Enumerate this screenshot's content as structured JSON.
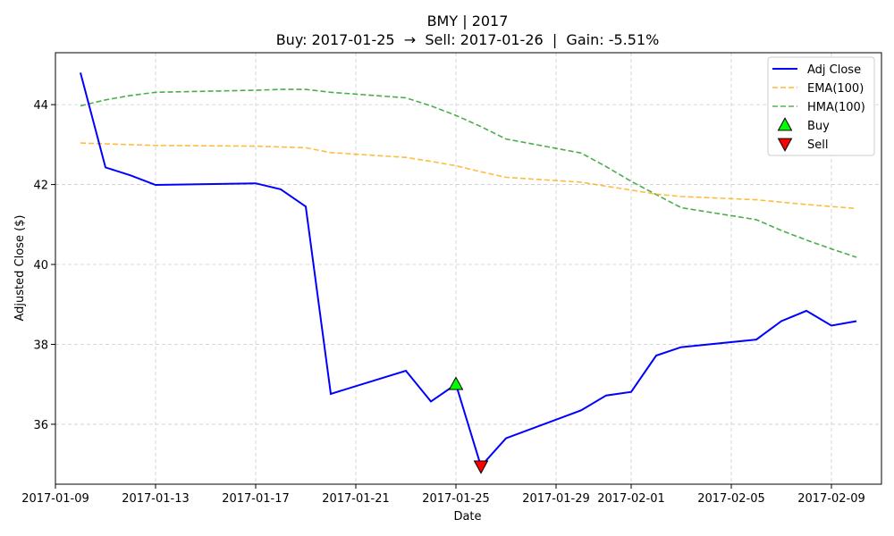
{
  "chart_data": {
    "type": "line",
    "title": "BMY | 2017",
    "subtitle": "Buy: 2017-01-25  →  Sell: 2017-01-26  |  Gain: -5.51%",
    "xlabel": "Date",
    "ylabel": "Adjusted Close ($)",
    "xlim": [
      "2017-01-09",
      "2017-02-11"
    ],
    "ylim": [
      34.5,
      45.3
    ],
    "grid": true,
    "legend_position": "top-right",
    "x_ticks": [
      "2017-01-09",
      "2017-01-13",
      "2017-01-17",
      "2017-01-21",
      "2017-01-25",
      "2017-01-29",
      "2017-02-01",
      "2017-02-05",
      "2017-02-09"
    ],
    "y_ticks": [
      36,
      38,
      40,
      42,
      44
    ],
    "series": [
      {
        "name": "Adj Close",
        "color": "#0000ff",
        "style": "solid",
        "x": [
          "2017-01-10",
          "2017-01-11",
          "2017-01-12",
          "2017-01-13",
          "2017-01-17",
          "2017-01-18",
          "2017-01-19",
          "2017-01-20",
          "2017-01-23",
          "2017-01-24",
          "2017-01-25",
          "2017-01-26",
          "2017-01-27",
          "2017-01-30",
          "2017-01-31",
          "2017-02-01",
          "2017-02-02",
          "2017-02-03",
          "2017-02-06",
          "2017-02-07",
          "2017-02-08",
          "2017-02-09",
          "2017-02-10"
        ],
        "values": [
          44.8,
          42.43,
          42.23,
          41.99,
          42.03,
          41.88,
          41.45,
          36.76,
          37.34,
          36.57,
          37.0,
          34.95,
          35.65,
          36.35,
          36.72,
          36.81,
          37.72,
          37.93,
          38.12,
          38.58,
          38.84,
          38.47,
          38.58
        ]
      },
      {
        "name": "EMA(100)",
        "color": "#ffa500",
        "style": "dashed",
        "x": [
          "2017-01-10",
          "2017-01-11",
          "2017-01-12",
          "2017-01-13",
          "2017-01-17",
          "2017-01-18",
          "2017-01-19",
          "2017-01-20",
          "2017-01-23",
          "2017-01-24",
          "2017-01-25",
          "2017-01-26",
          "2017-01-27",
          "2017-01-30",
          "2017-01-31",
          "2017-02-01",
          "2017-02-02",
          "2017-02-03",
          "2017-02-06",
          "2017-02-07",
          "2017-02-08",
          "2017-02-09",
          "2017-02-10"
        ],
        "values": [
          43.04,
          43.02,
          43.0,
          42.98,
          42.96,
          42.94,
          42.92,
          42.8,
          42.68,
          42.58,
          42.47,
          42.32,
          42.18,
          42.06,
          41.96,
          41.86,
          41.76,
          41.7,
          41.62,
          41.56,
          41.5,
          41.45,
          41.4
        ]
      },
      {
        "name": "HMA(100)",
        "color": "#2ca02c",
        "style": "dashed",
        "x": [
          "2017-01-10",
          "2017-01-11",
          "2017-01-12",
          "2017-01-13",
          "2017-01-17",
          "2017-01-18",
          "2017-01-19",
          "2017-01-20",
          "2017-01-23",
          "2017-01-24",
          "2017-01-25",
          "2017-01-26",
          "2017-01-27",
          "2017-01-30",
          "2017-01-31",
          "2017-02-01",
          "2017-02-02",
          "2017-02-03",
          "2017-02-06",
          "2017-02-07",
          "2017-02-08",
          "2017-02-09",
          "2017-02-10"
        ],
        "values": [
          43.97,
          44.12,
          44.23,
          44.31,
          44.36,
          44.38,
          44.38,
          44.31,
          44.17,
          43.97,
          43.73,
          43.45,
          43.14,
          42.79,
          42.45,
          42.08,
          41.75,
          41.42,
          41.12,
          40.85,
          40.61,
          40.39,
          40.18
        ]
      }
    ],
    "markers": [
      {
        "name": "Buy",
        "x": "2017-01-25",
        "y": 37.0,
        "color": "#00ff00",
        "shape": "triangle-up"
      },
      {
        "name": "Sell",
        "x": "2017-01-26",
        "y": 34.95,
        "color": "#ff0000",
        "shape": "triangle-down"
      }
    ]
  }
}
